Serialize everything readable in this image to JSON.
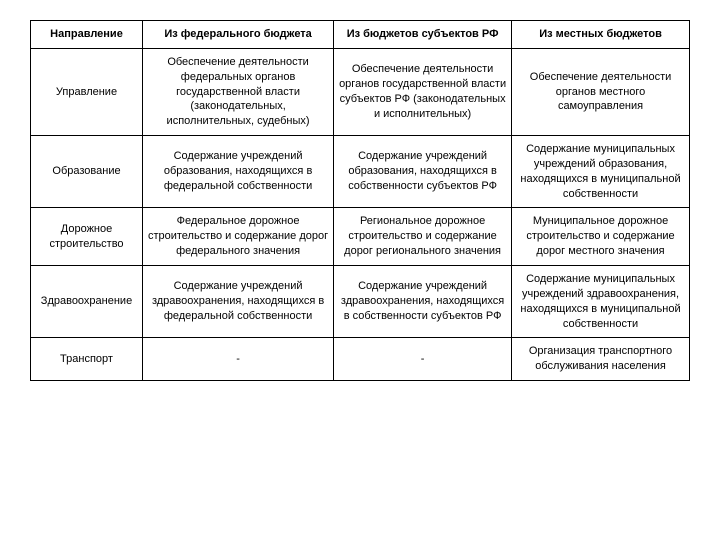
{
  "table": {
    "columns": [
      "Направление",
      "Из федерального бюджета",
      "Из бюджетов субъектов РФ",
      "Из местных бюджетов"
    ],
    "rows": [
      {
        "name": "Управление",
        "federal": "Обеспечение деятельности федеральных органов государственной власти (законодательных, исполнительных, судебных)",
        "regional": "Обеспечение деятельности органов государственной власти субъектов РФ (законодательных и исполнительных)",
        "local": "Обеспечение деятельности органов местного самоуправления"
      },
      {
        "name": "Образование",
        "federal": "Содержание учреждений образования, находящихся в федеральной собственности",
        "regional": "Содержание учреждений образования, находящихся в собственности субъектов РФ",
        "local": "Содержание муниципальных учреждений образования, находящихся в муниципальной собственности"
      },
      {
        "name": "Дорожное строительство",
        "federal": "Федеральное дорожное строительство и содержание дорог федерального значения",
        "regional": "Региональное дорожное строительство и содержание дорог регионального значения",
        "local": "Муниципальное дорожное строительство и содержание дорог местного значения"
      },
      {
        "name": "Здравоохранение",
        "federal": "Содержание учреждений здравоохранения, находящихся в федеральной собственности",
        "regional": "Содержание учреждений здравоохранения, находящихся в собственности субъектов РФ",
        "local": "Содержание муниципальных учреждений здравоохранения, находящихся в муниципальной собственности"
      },
      {
        "name": "Транспорт",
        "federal": "-",
        "regional": "-",
        "local": "Организация транспортного обслуживания населения"
      }
    ]
  }
}
